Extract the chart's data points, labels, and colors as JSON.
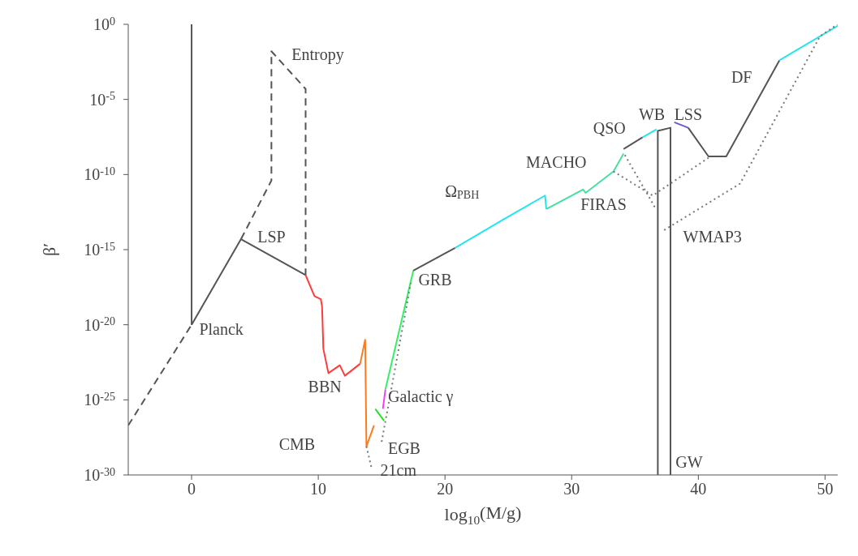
{
  "chart_data": {
    "type": "line",
    "xlabel": "log$_{10}$(M/g)",
    "ylabel": "β′",
    "log": "y",
    "xlim": [
      -5,
      51
    ],
    "xticks": [
      0,
      10,
      20,
      30,
      40,
      50
    ],
    "ylim": [
      1e-30,
      1
    ],
    "yticks": [
      {
        "value": 1,
        "label": "10$^{0}$"
      },
      {
        "value": 1e-05,
        "label": "10$^{-5}$"
      },
      {
        "value": 1e-10,
        "label": "10$^{-10}$"
      },
      {
        "value": 1e-15,
        "label": "10$^{-15}$"
      },
      {
        "value": 1e-20,
        "label": "10$^{-20}$"
      },
      {
        "value": 1e-25,
        "label": "10$^{-25}$"
      },
      {
        "value": 1e-30,
        "label": "10$^{-30}$"
      }
    ],
    "grid": false,
    "marker": "none",
    "series": [
      {
        "color": "#555555",
        "line_style": "solid",
        "x": [
          0,
          0
        ],
        "values": [
          1,
          1e-20
        ]
      },
      {
        "color": "#555555",
        "line_style": "dashed",
        "x": [
          -5,
          0
        ],
        "values": [
          2e-27,
          1e-20
        ]
      },
      {
        "color": "#555555",
        "line_style": "solid",
        "x": [
          0,
          3.9,
          9.0
        ],
        "values": [
          1e-20,
          5e-15,
          2e-17
        ]
      },
      {
        "color": "#555555",
        "line_style": "dashed",
        "x": [
          3.9,
          6.3,
          6.3,
          9.0,
          9.0
        ],
        "values": [
          5e-15,
          4e-11,
          0.016,
          5e-05,
          2e-17
        ]
      },
      {
        "color": "#ff3b3b",
        "line_style": "solid",
        "x": [
          9.0,
          9.3,
          9.7,
          10.2,
          10.3,
          10.4,
          10.8,
          11.7,
          12.1,
          13.3
        ],
        "values": [
          2e-17,
          5e-18,
          8e-19,
          5e-19,
          1.6e-19,
          2.5e-22,
          6e-24,
          2e-23,
          4e-24,
          2.5e-23
        ]
      },
      {
        "color": "#ff7a1a",
        "line_style": "solid",
        "x": [
          13.3,
          13.7,
          13.8,
          14.4
        ],
        "values": [
          2.5e-23,
          1e-21,
          8e-29,
          2e-27
        ]
      },
      {
        "color": "#22dd22",
        "line_style": "solid",
        "x": [
          14.5,
          15.2
        ],
        "values": [
          2.5e-26,
          4e-27
        ]
      },
      {
        "color": "#ee44ee",
        "line_style": "solid",
        "x": [
          15.1,
          15.3
        ],
        "values": [
          2.5e-26,
          5e-25
        ]
      },
      {
        "color": "#33ee66",
        "line_style": "solid",
        "x": [
          15.3,
          17.5
        ],
        "values": [
          5e-25,
          4e-17
        ]
      },
      {
        "color": "#555555",
        "line_style": "solid",
        "x": [
          17.5,
          20.8
        ],
        "values": [
          4e-17,
          1.3e-15
        ]
      },
      {
        "color": "#22e5ee",
        "line_style": "solid",
        "x": [
          20.8,
          24.6,
          27.9,
          28.0
        ],
        "values": [
          1.3e-15,
          1e-13,
          4e-12,
          5e-13
        ]
      },
      {
        "color": "#44e0a0",
        "line_style": "solid",
        "x": [
          28.0,
          30.9,
          31.1,
          33.3,
          34.1
        ],
        "values": [
          5e-13,
          1e-11,
          6e-12,
          1.6e-10,
          2.5e-09
        ]
      },
      {
        "color": "#555555",
        "line_style": "solid",
        "x": [
          34.1,
          35.6
        ],
        "values": [
          5e-09,
          3e-08
        ]
      },
      {
        "color": "#22e5ee",
        "line_style": "solid",
        "x": [
          35.6,
          36.7
        ],
        "values": [
          3e-08,
          1e-07
        ]
      },
      {
        "color": "#555555",
        "line_style": "solid",
        "x": [
          36.8,
          36.8,
          37.8,
          37.8
        ],
        "values": [
          1e-30,
          8e-08,
          1.3e-07,
          1e-30
        ]
      },
      {
        "color": "#6a5acd",
        "line_style": "solid",
        "x": [
          38.1,
          39.2
        ],
        "values": [
          3e-07,
          1.3e-07
        ]
      },
      {
        "color": "#555555",
        "line_style": "solid",
        "x": [
          39.2,
          40.8,
          42.2,
          46.4
        ],
        "values": [
          1.3e-07,
          1.6e-09,
          1.6e-09,
          0.004
        ]
      },
      {
        "color": "#22e5ee",
        "line_style": "solid",
        "x": [
          46.4,
          51
        ],
        "values": [
          0.004,
          0.8
        ]
      },
      {
        "color": "#777777",
        "line_style": "dotted",
        "x": [
          33.3,
          36.4,
          40.8
        ],
        "values": [
          1.6e-10,
          4e-12,
          1.3e-09
        ]
      },
      {
        "color": "#777777",
        "line_style": "dotted",
        "x": [
          34.2,
          36.6
        ],
        "values": [
          2e-09,
          6e-13
        ]
      },
      {
        "color": "#777777",
        "line_style": "dotted",
        "x": [
          37.3,
          43.3,
          49.6,
          51
        ],
        "values": [
          2e-14,
          2.5e-11,
          0.16,
          1
        ]
      },
      {
        "color": "#777777",
        "line_style": "dotted",
        "x": [
          13.8,
          14.2
        ],
        "values": [
          8e-29,
          3e-30
        ]
      },
      {
        "color": "#777777",
        "line_style": "dotted",
        "x": [
          15.0,
          17.3
        ],
        "values": [
          1.6e-28,
          6e-18
        ]
      }
    ],
    "annotations": [
      "Entropy",
      "LSP",
      "Planck",
      "BBN",
      "CMB",
      "21cm",
      "EGB",
      "Galactic γ",
      "GRB",
      "Ω$_{PBH}$",
      "MACHO",
      "QSO",
      "FIRAS",
      "WB",
      "LSS",
      "WMAP3",
      "DF",
      "GW"
    ]
  }
}
